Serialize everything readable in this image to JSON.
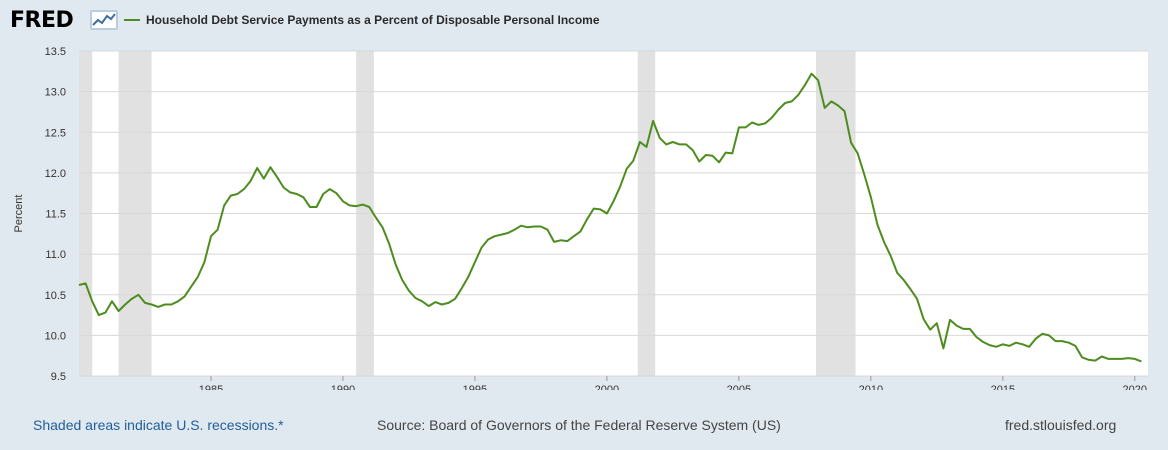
{
  "header": {
    "logo_text": "FRED",
    "legend_label": "Household Debt Service Payments as a Percent of Disposable Personal Income"
  },
  "footer": {
    "recessions_note": "Shaded areas indicate U.S. recessions.*",
    "source": "Source: Board of Governors of the Federal Reserve System (US)",
    "site": "fred.stlouisfed.org"
  },
  "colors": {
    "line": "#4d8c1e",
    "recession": "#e1e1e1",
    "grid": "#d8d8d8"
  },
  "chart_data": {
    "type": "line",
    "ylabel": "Percent",
    "ylim": [
      9.5,
      13.5
    ],
    "yticks": [
      9.5,
      10.0,
      10.5,
      11.0,
      11.5,
      12.0,
      12.5,
      13.0,
      13.5
    ],
    "xlim": [
      1980.0,
      2020.5
    ],
    "xticks": [
      1985,
      1990,
      1995,
      2000,
      2005,
      2010,
      2015,
      2020
    ],
    "grid": true,
    "recessions": [
      [
        1980.0,
        1980.5
      ],
      [
        1981.5,
        1982.75
      ],
      [
        1990.5,
        1991.17
      ],
      [
        2001.17,
        2001.83
      ],
      [
        2007.92,
        2009.42
      ]
    ],
    "series": [
      {
        "points": [
          [
            1980.0,
            10.62
          ],
          [
            1980.25,
            10.64
          ],
          [
            1980.5,
            10.42
          ],
          [
            1980.75,
            10.25
          ],
          [
            1981.0,
            10.28
          ],
          [
            1981.25,
            10.42
          ],
          [
            1981.5,
            10.3
          ],
          [
            1981.75,
            10.38
          ],
          [
            1982.0,
            10.45
          ],
          [
            1982.25,
            10.5
          ],
          [
            1982.5,
            10.4
          ],
          [
            1982.75,
            10.38
          ],
          [
            1983.0,
            10.35
          ],
          [
            1983.25,
            10.38
          ],
          [
            1983.5,
            10.38
          ],
          [
            1983.75,
            10.42
          ],
          [
            1984.0,
            10.48
          ],
          [
            1984.25,
            10.6
          ],
          [
            1984.5,
            10.72
          ],
          [
            1984.75,
            10.9
          ],
          [
            1985.0,
            11.22
          ],
          [
            1985.25,
            11.3
          ],
          [
            1985.5,
            11.6
          ],
          [
            1985.75,
            11.72
          ],
          [
            1986.0,
            11.74
          ],
          [
            1986.25,
            11.8
          ],
          [
            1986.5,
            11.9
          ],
          [
            1986.75,
            12.06
          ],
          [
            1987.0,
            11.93
          ],
          [
            1987.25,
            12.07
          ],
          [
            1987.5,
            11.95
          ],
          [
            1987.75,
            11.82
          ],
          [
            1988.0,
            11.76
          ],
          [
            1988.25,
            11.74
          ],
          [
            1988.5,
            11.7
          ],
          [
            1988.75,
            11.58
          ],
          [
            1989.0,
            11.58
          ],
          [
            1989.25,
            11.74
          ],
          [
            1989.5,
            11.8
          ],
          [
            1989.75,
            11.75
          ],
          [
            1990.0,
            11.65
          ],
          [
            1990.25,
            11.6
          ],
          [
            1990.5,
            11.59
          ],
          [
            1990.75,
            11.61
          ],
          [
            1991.0,
            11.58
          ],
          [
            1991.25,
            11.45
          ],
          [
            1991.5,
            11.33
          ],
          [
            1991.75,
            11.13
          ],
          [
            1992.0,
            10.87
          ],
          [
            1992.25,
            10.68
          ],
          [
            1992.5,
            10.55
          ],
          [
            1992.75,
            10.46
          ],
          [
            1993.0,
            10.42
          ],
          [
            1993.25,
            10.36
          ],
          [
            1993.5,
            10.41
          ],
          [
            1993.75,
            10.38
          ],
          [
            1994.0,
            10.4
          ],
          [
            1994.25,
            10.45
          ],
          [
            1994.5,
            10.58
          ],
          [
            1994.75,
            10.72
          ],
          [
            1995.0,
            10.9
          ],
          [
            1995.25,
            11.08
          ],
          [
            1995.5,
            11.18
          ],
          [
            1995.75,
            11.22
          ],
          [
            1996.0,
            11.24
          ],
          [
            1996.25,
            11.26
          ],
          [
            1996.5,
            11.3
          ],
          [
            1996.75,
            11.35
          ],
          [
            1997.0,
            11.33
          ],
          [
            1997.25,
            11.34
          ],
          [
            1997.5,
            11.34
          ],
          [
            1997.75,
            11.3
          ],
          [
            1998.0,
            11.15
          ],
          [
            1998.25,
            11.17
          ],
          [
            1998.5,
            11.16
          ],
          [
            1998.75,
            11.22
          ],
          [
            1999.0,
            11.28
          ],
          [
            1999.25,
            11.43
          ],
          [
            1999.5,
            11.56
          ],
          [
            1999.75,
            11.55
          ],
          [
            2000.0,
            11.5
          ],
          [
            2000.25,
            11.65
          ],
          [
            2000.5,
            11.83
          ],
          [
            2000.75,
            12.05
          ],
          [
            2001.0,
            12.15
          ],
          [
            2001.25,
            12.38
          ],
          [
            2001.5,
            12.32
          ],
          [
            2001.75,
            12.64
          ],
          [
            2002.0,
            12.43
          ],
          [
            2002.25,
            12.35
          ],
          [
            2002.5,
            12.38
          ],
          [
            2002.75,
            12.35
          ],
          [
            2003.0,
            12.35
          ],
          [
            2003.25,
            12.28
          ],
          [
            2003.5,
            12.14
          ],
          [
            2003.75,
            12.22
          ],
          [
            2004.0,
            12.21
          ],
          [
            2004.25,
            12.13
          ],
          [
            2004.5,
            12.25
          ],
          [
            2004.75,
            12.24
          ],
          [
            2005.0,
            12.56
          ],
          [
            2005.25,
            12.56
          ],
          [
            2005.5,
            12.62
          ],
          [
            2005.75,
            12.59
          ],
          [
            2006.0,
            12.61
          ],
          [
            2006.25,
            12.68
          ],
          [
            2006.5,
            12.78
          ],
          [
            2006.75,
            12.86
          ],
          [
            2007.0,
            12.88
          ],
          [
            2007.25,
            12.96
          ],
          [
            2007.5,
            13.08
          ],
          [
            2007.75,
            13.22
          ],
          [
            2008.0,
            13.14
          ],
          [
            2008.25,
            12.8
          ],
          [
            2008.5,
            12.88
          ],
          [
            2008.75,
            12.83
          ],
          [
            2009.0,
            12.76
          ],
          [
            2009.25,
            12.37
          ],
          [
            2009.5,
            12.24
          ],
          [
            2009.75,
            11.98
          ],
          [
            2010.0,
            11.7
          ],
          [
            2010.25,
            11.36
          ],
          [
            2010.5,
            11.15
          ],
          [
            2010.75,
            10.98
          ],
          [
            2011.0,
            10.77
          ],
          [
            2011.25,
            10.68
          ],
          [
            2011.5,
            10.57
          ],
          [
            2011.75,
            10.45
          ],
          [
            2012.0,
            10.2
          ],
          [
            2012.25,
            10.07
          ],
          [
            2012.5,
            10.15
          ],
          [
            2012.75,
            9.84
          ],
          [
            2013.0,
            10.19
          ],
          [
            2013.25,
            10.12
          ],
          [
            2013.5,
            10.08
          ],
          [
            2013.75,
            10.08
          ],
          [
            2014.0,
            9.98
          ],
          [
            2014.25,
            9.92
          ],
          [
            2014.5,
            9.88
          ],
          [
            2014.75,
            9.86
          ],
          [
            2015.0,
            9.89
          ],
          [
            2015.25,
            9.87
          ],
          [
            2015.5,
            9.91
          ],
          [
            2015.75,
            9.89
          ],
          [
            2016.0,
            9.86
          ],
          [
            2016.25,
            9.96
          ],
          [
            2016.5,
            10.02
          ],
          [
            2016.75,
            10.0
          ],
          [
            2017.0,
            9.93
          ],
          [
            2017.25,
            9.93
          ],
          [
            2017.5,
            9.91
          ],
          [
            2017.75,
            9.87
          ],
          [
            2018.0,
            9.73
          ],
          [
            2018.25,
            9.7
          ],
          [
            2018.5,
            9.69
          ],
          [
            2018.75,
            9.74
          ],
          [
            2019.0,
            9.71
          ],
          [
            2019.25,
            9.71
          ],
          [
            2019.5,
            9.71
          ],
          [
            2019.75,
            9.72
          ],
          [
            2020.0,
            9.71
          ],
          [
            2020.25,
            9.68
          ]
        ]
      }
    ]
  }
}
